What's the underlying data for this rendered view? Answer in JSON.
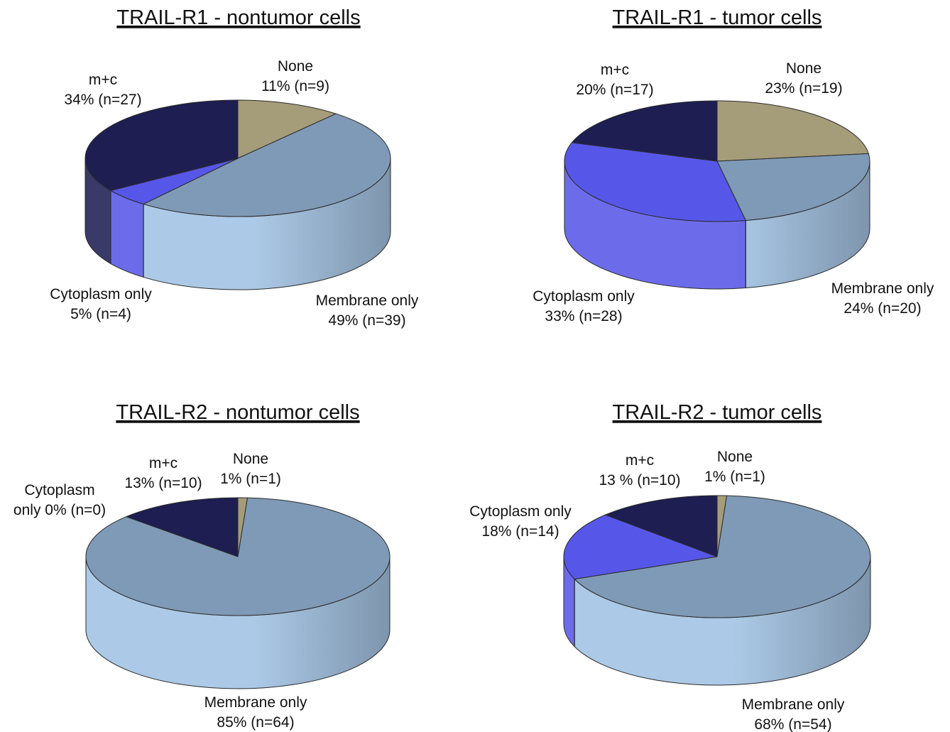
{
  "chart_data": [
    {
      "type": "pie",
      "title": "TRAIL-R1 - nontumor cells",
      "slices": [
        {
          "category": "None",
          "percent": 11,
          "n": 9,
          "label_lines": [
            "None",
            "11% (n=9)"
          ],
          "color": "#A59C7A"
        },
        {
          "category": "Membrane only",
          "percent": 49,
          "n": 39,
          "label_lines": [
            "Membrane only",
            "49% (n=39)"
          ],
          "color": "#7F9AB6"
        },
        {
          "category": "Cytoplasm only",
          "percent": 5,
          "n": 4,
          "label_lines": [
            "Cytoplasm only",
            "5% (n=4)"
          ],
          "color": "#5657E8"
        },
        {
          "category": "m+c",
          "percent": 34,
          "n": 27,
          "label_lines": [
            "m+c",
            "34% (n=27)"
          ],
          "color": "#1E1E52"
        }
      ]
    },
    {
      "type": "pie",
      "title": "TRAIL-R1 - tumor cells",
      "slices": [
        {
          "category": "None",
          "percent": 23,
          "n": 19,
          "label_lines": [
            "None",
            "23% (n=19)"
          ],
          "color": "#A59C7A"
        },
        {
          "category": "Membrane only",
          "percent": 24,
          "n": 20,
          "label_lines": [
            "Membrane only",
            "24% (n=20)"
          ],
          "color": "#7F9AB6"
        },
        {
          "category": "Cytoplasm only",
          "percent": 33,
          "n": 28,
          "label_lines": [
            "Cytoplasm only",
            "33% (n=28)"
          ],
          "color": "#5657E8"
        },
        {
          "category": "m+c",
          "percent": 20,
          "n": 17,
          "label_lines": [
            "m+c",
            "20% (n=17)"
          ],
          "color": "#1E1E52"
        }
      ]
    },
    {
      "type": "pie",
      "title": "TRAIL-R2 - nontumor cells",
      "slices": [
        {
          "category": "None",
          "percent": 1,
          "n": 1,
          "label_lines": [
            "None",
            "1% (n=1)"
          ],
          "color": "#A59C7A"
        },
        {
          "category": "Membrane only",
          "percent": 85,
          "n": 64,
          "label_lines": [
            "Membrane only",
            "85% (n=64)"
          ],
          "color": "#7F9AB6"
        },
        {
          "category": "Cytoplasm only",
          "percent": 0,
          "n": 0,
          "label_lines": [
            "Cytoplasm",
            "only 0% (n=0)"
          ],
          "color": "#5657E8"
        },
        {
          "category": "m+c",
          "percent": 13,
          "n": 10,
          "label_lines": [
            "m+c",
            "13% (n=10)"
          ],
          "color": "#1E1E52"
        }
      ]
    },
    {
      "type": "pie",
      "title": "TRAIL-R2 - tumor cells",
      "slices": [
        {
          "category": "None",
          "percent": 1,
          "n": 1,
          "label_lines": [
            "None",
            "1% (n=1)"
          ],
          "color": "#A59C7A"
        },
        {
          "category": "Membrane only",
          "percent": 68,
          "n": 54,
          "label_lines": [
            "Membrane only",
            "68% (n=54)"
          ],
          "color": "#7F9AB6"
        },
        {
          "category": "Cytoplasm only",
          "percent": 18,
          "n": 14,
          "label_lines": [
            "Cytoplasm only",
            "18% (n=14)"
          ],
          "color": "#5657E8"
        },
        {
          "category": "m+c",
          "percent": 13,
          "n": 10,
          "label_lines": [
            "m+c",
            "13 % (n=10)"
          ],
          "color": "#1E1E52"
        }
      ]
    }
  ]
}
